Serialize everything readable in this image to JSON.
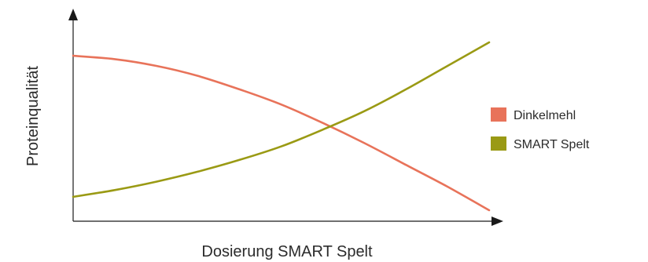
{
  "chart_data": {
    "type": "line",
    "title": "",
    "xlabel": "Dosierung SMART Spelt",
    "ylabel": "Proteinqualität",
    "xlim": [
      0,
      100
    ],
    "ylim": [
      0,
      100
    ],
    "ticks_shown": false,
    "grid": false,
    "legend_position": "right",
    "series": [
      {
        "name": "Dinkelmehl",
        "color": "#E8735A",
        "x": [
          0,
          10,
          20,
          30,
          40,
          50,
          60,
          70,
          80,
          90,
          100
        ],
        "y": [
          92,
          90,
          86,
          80,
          72,
          63,
          52,
          40,
          27,
          14,
          0
        ]
      },
      {
        "name": "SMART Spelt",
        "color": "#9A9A14",
        "x": [
          0,
          10,
          20,
          30,
          40,
          50,
          60,
          70,
          80,
          90,
          100
        ],
        "y": [
          8,
          12,
          17,
          23,
          30,
          38,
          48,
          59,
          72,
          86,
          100
        ]
      }
    ]
  }
}
